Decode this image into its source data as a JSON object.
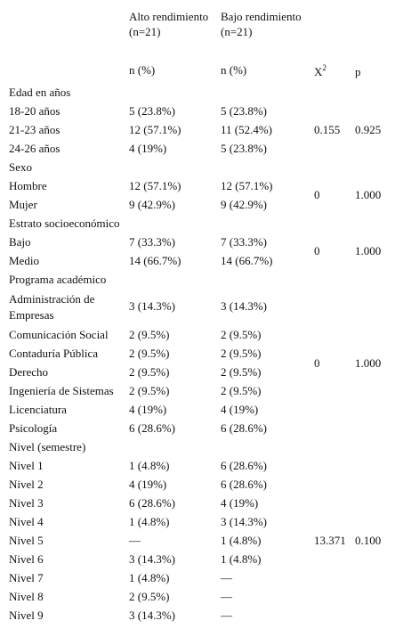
{
  "header": {
    "col_alto": "Alto rendimiento (n=21)",
    "col_bajo": "Bajo rendimiento (n=21)",
    "n_pct_alto": "n (%)",
    "n_pct_bajo": "n (%)",
    "chi_base": "X",
    "chi_exp": "2",
    "p_label": "p"
  },
  "rows": [
    {
      "label": "Edad en años",
      "alto": "",
      "bajo": ""
    },
    {
      "label": "18-20 años",
      "alto": "5 (23.8%)",
      "bajo": "5 (23.8%)"
    },
    {
      "label": "21-23 años",
      "alto": "12 (57.1%)",
      "bajo": "11 (52.4%)"
    },
    {
      "label": "24-26 años",
      "alto": "4 (19%)",
      "bajo": "5 (23.8%)"
    },
    {
      "label": "Sexo",
      "alto": "",
      "bajo": ""
    },
    {
      "label": "Hombre",
      "alto": "12 (57.1%)",
      "bajo": "12 (57.1%)"
    },
    {
      "label": "Mujer",
      "alto": "9 (42.9%)",
      "bajo": "9 (42.9%)"
    },
    {
      "label": "Estrato socioeconómico",
      "alto": "",
      "bajo": ""
    },
    {
      "label": "Bajo",
      "alto": "7 (33.3%)",
      "bajo": "7 (33.3%)"
    },
    {
      "label": "Medio",
      "alto": "14 (66.7%)",
      "bajo": "14 (66.7%)"
    },
    {
      "label": "Programa académico",
      "alto": "",
      "bajo": ""
    },
    {
      "label": "Administración de Empresas",
      "alto": "3 (14.3%)",
      "bajo": "3 (14.3%)"
    },
    {
      "label": "Comunicación Social",
      "alto": "2 (9.5%)",
      "bajo": "2 (9.5%)"
    },
    {
      "label": "Contaduría Pública",
      "alto": "2 (9.5%)",
      "bajo": "2 (9.5%)"
    },
    {
      "label": "Derecho",
      "alto": "2 (9.5%)",
      "bajo": "2 (9.5%)"
    },
    {
      "label": "Ingeniería de Sistemas",
      "alto": "2 (9.5%)",
      "bajo": "2 (9.5%)"
    },
    {
      "label": "Licenciatura",
      "alto": "4 (19%)",
      "bajo": "4 (19%)"
    },
    {
      "label": "Psicología",
      "alto": "6 (28.6%)",
      "bajo": "6 (28.6%)"
    },
    {
      "label": "Nivel (semestre)",
      "alto": "",
      "bajo": ""
    },
    {
      "label": "Nivel 1",
      "alto": "1 (4.8%)",
      "bajo": "6 (28.6%)"
    },
    {
      "label": "Nivel 2",
      "alto": "4 (19%)",
      "bajo": "6 (28.6%)"
    },
    {
      "label": "Nivel 3",
      "alto": "6 (28.6%)",
      "bajo": "4 (19%)"
    },
    {
      "label": "Nivel 4",
      "alto": "1 (4.8%)",
      "bajo": "3 (14.3%)"
    },
    {
      "label": "Nivel 5",
      "alto": "—",
      "bajo": "1 (4.8%)"
    },
    {
      "label": "Nivel 6",
      "alto": "3 (14.3%)",
      "bajo": "1 (4.8%)"
    },
    {
      "label": "Nivel 7",
      "alto": "1 (4.8%)",
      "bajo": "—"
    },
    {
      "label": "Nivel 8",
      "alto": "2 (9.5%)",
      "bajo": "—"
    },
    {
      "label": "Nivel 9",
      "alto": "3 (14.3%)",
      "bajo": "—"
    }
  ],
  "stats": [
    {
      "chi2": "0.155",
      "p": "0.925"
    },
    {
      "chi2": "0",
      "p": "1.000"
    },
    {
      "chi2": "0",
      "p": "1.000"
    },
    {
      "chi2": "0",
      "p": "1.000"
    },
    {
      "chi2": "13.371",
      "p": "0.100"
    }
  ]
}
